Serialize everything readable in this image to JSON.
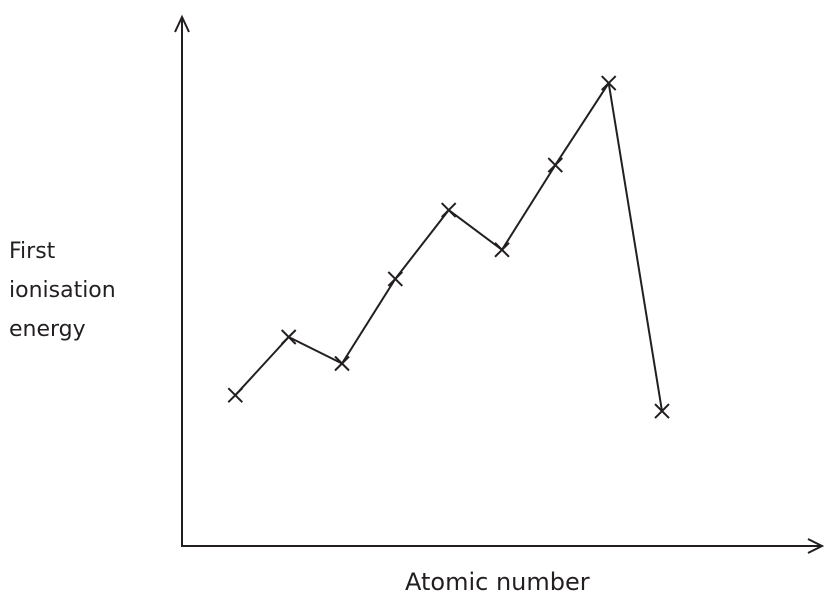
{
  "chart_data": {
    "type": "line",
    "title": "",
    "xlabel": "Atomic number",
    "ylabel_lines": [
      "First",
      "ionisation",
      "energy"
    ],
    "x_ticks_shown": false,
    "y_ticks_shown": false,
    "grid": false,
    "legend": "none",
    "marker": "cross",
    "line_color": "#231f20",
    "xlim": [
      0,
      12
    ],
    "ylim": [
      0,
      100
    ],
    "series": [
      {
        "name": "",
        "x": [
          1,
          2,
          3,
          4,
          5,
          6,
          7,
          8,
          9
        ],
        "y": [
          28.5,
          39.5,
          34.5,
          50.5,
          63.5,
          56,
          72,
          87.5,
          25.5
        ]
      }
    ]
  }
}
